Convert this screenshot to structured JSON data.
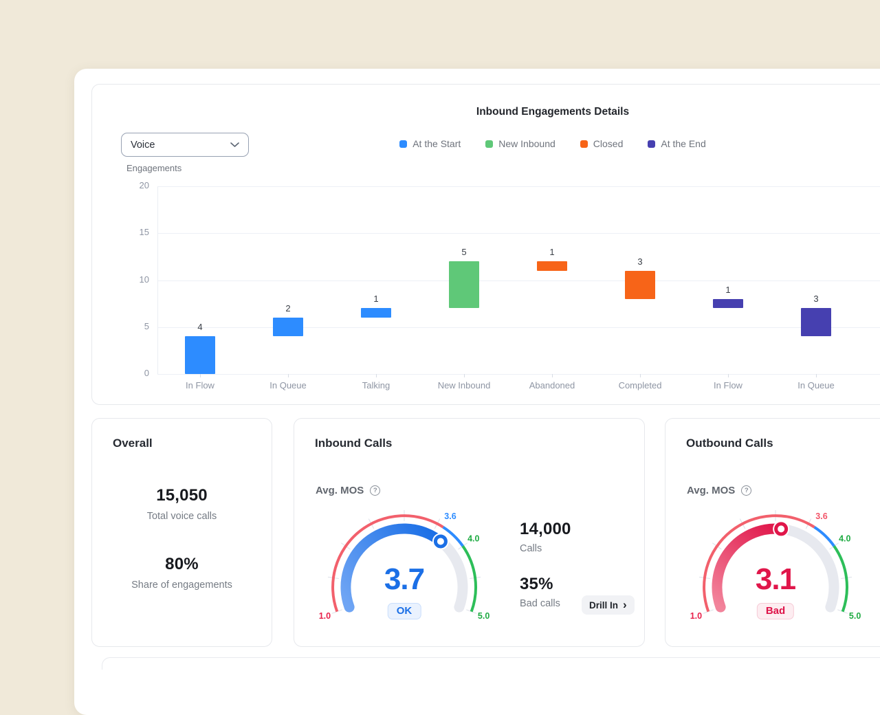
{
  "chart_card": {
    "filter_value": "Voice"
  },
  "chart_data": {
    "type": "bar",
    "subtype": "waterfall",
    "title": "Inbound Engagements Details",
    "ylabel": "Engagements",
    "ylim": [
      0,
      20
    ],
    "yticks": [
      0,
      5,
      10,
      15,
      20
    ],
    "grid": true,
    "legend_position": "top-center",
    "categories": [
      "In Flow",
      "In Queue",
      "Talking",
      "New Inbound",
      "Abandoned",
      "Completed",
      "In Flow",
      "In Queue"
    ],
    "series_legend": [
      {
        "label": "At the Start",
        "color": "#2D8CFF"
      },
      {
        "label": "New Inbound",
        "color": "#5FC878"
      },
      {
        "label": "Closed",
        "color": "#F76418"
      },
      {
        "label": "At the End",
        "color": "#4640B0"
      }
    ],
    "bars": [
      {
        "category": "In Flow",
        "series": "At the Start",
        "value": 4,
        "from": 0,
        "to": 4
      },
      {
        "category": "In Queue",
        "series": "At the Start",
        "value": 2,
        "from": 4,
        "to": 6
      },
      {
        "category": "Talking",
        "series": "At the Start",
        "value": 1,
        "from": 6,
        "to": 7
      },
      {
        "category": "New Inbound",
        "series": "New Inbound",
        "value": 5,
        "from": 7,
        "to": 12
      },
      {
        "category": "Abandoned",
        "series": "Closed",
        "value": 1,
        "from": 12,
        "to": 11
      },
      {
        "category": "Completed",
        "series": "Closed",
        "value": 3,
        "from": 11,
        "to": 8
      },
      {
        "category": "In Flow",
        "series": "At the End",
        "value": 1,
        "from": 8,
        "to": 7
      },
      {
        "category": "In Queue",
        "series": "At the End",
        "value": 3,
        "from": 7,
        "to": 4
      }
    ]
  },
  "cards": {
    "overall": {
      "title": "Overall",
      "stats": [
        {
          "value": "15,050",
          "label": "Total voice calls"
        },
        {
          "value": "80%",
          "label": "Share of engagements"
        }
      ]
    },
    "inbound": {
      "title": "Inbound Calls",
      "metric_label": "Avg. MOS",
      "info_icon": "?",
      "gauge": {
        "min": 1,
        "max": 5,
        "value": 3.7,
        "value_color": "#1B6FE6",
        "progress_gradient": [
          "#6FA5F4",
          "#1B6FE6"
        ],
        "track_color": "#E7E9EF",
        "zones": [
          {
            "to": 3.6,
            "color": "#F2606C"
          },
          {
            "to": 4.0,
            "color": "#2D8CFF"
          },
          {
            "to": 5.0,
            "color": "#2DBE59"
          }
        ],
        "tick_labels": [
          {
            "value": 1.0,
            "text": "1.0",
            "color": "#E8204A"
          },
          {
            "value": 3.6,
            "text": "3.6",
            "color": "#2D8CFF"
          },
          {
            "value": 4.0,
            "text": "4.0",
            "color": "#1FAB43"
          },
          {
            "value": 5.0,
            "text": "5.0",
            "color": "#1FAB43"
          }
        ],
        "badge": {
          "text": "OK",
          "bg": "#EAF2FE",
          "border": "#C9DEFC",
          "color": "#1B6FE6"
        }
      },
      "stats": [
        {
          "value": "14,000",
          "label": "Calls"
        },
        {
          "value": "35%",
          "label": "Bad calls"
        }
      ],
      "drill_in": {
        "label": "Drill In",
        "chevron": "›"
      }
    },
    "outbound": {
      "title": "Outbound Calls",
      "metric_label": "Avg. MOS",
      "info_icon": "?",
      "gauge": {
        "min": 1,
        "max": 5,
        "value": 3.1,
        "value_color": "#E0164A",
        "progress_gradient": [
          "#F2849B",
          "#E0164A"
        ],
        "track_color": "#E7E9EF",
        "zones": [
          {
            "to": 3.6,
            "color": "#F2606C"
          },
          {
            "to": 4.0,
            "color": "#2D8CFF"
          },
          {
            "to": 5.0,
            "color": "#2DBE59"
          }
        ],
        "tick_labels": [
          {
            "value": 1.0,
            "text": "1.0",
            "color": "#E8204A"
          },
          {
            "value": 3.6,
            "text": "3.6",
            "color": "#F25569"
          },
          {
            "value": 4.0,
            "text": "4.0",
            "color": "#1FAB43"
          },
          {
            "value": 5.0,
            "text": "5.0",
            "color": "#1FAB43"
          }
        ],
        "badge": {
          "text": "Bad",
          "bg": "#FDEDF1",
          "border": "#F6CBD6",
          "color": "#DE1248"
        }
      }
    }
  }
}
